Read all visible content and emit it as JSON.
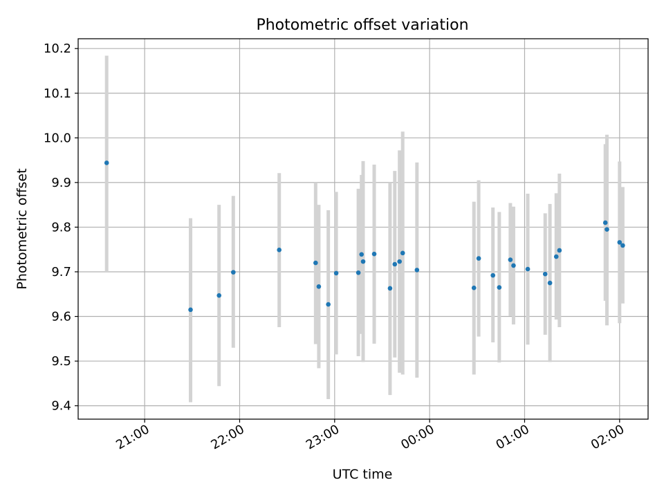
{
  "chart_data": {
    "type": "scatter",
    "title": "Photometric offset variation",
    "xlabel": "UTC time",
    "ylabel": "Photometric offset",
    "x_is_time": true,
    "xlim": [
      "20:18",
      "26:18"
    ],
    "ylim": [
      9.37,
      10.222
    ],
    "x_ticks": [
      "21:00",
      "22:00",
      "23:00",
      "24:00",
      "25:00",
      "26:00"
    ],
    "x_tick_labels": [
      "21:00",
      "22:00",
      "23:00",
      "00:00",
      "01:00",
      "02:00"
    ],
    "y_ticks": [
      9.4,
      9.5,
      9.6,
      9.7,
      9.8,
      9.9,
      10.0,
      10.1,
      10.2
    ],
    "y_tick_labels": [
      "9.4",
      "9.5",
      "9.6",
      "9.7",
      "9.8",
      "9.9",
      "10.0",
      "10.1",
      "10.2"
    ],
    "grid": true,
    "marker_color": "#1f77b4",
    "errorbar_color": "#d3d3d3",
    "points": [
      {
        "x": "20:36",
        "y": 9.944,
        "ylo": 9.7,
        "yhi": 10.184
      },
      {
        "x": "21:29",
        "y": 9.615,
        "ylo": 9.408,
        "yhi": 9.82
      },
      {
        "x": "21:47",
        "y": 9.647,
        "ylo": 9.444,
        "yhi": 9.85
      },
      {
        "x": "21:56",
        "y": 9.699,
        "ylo": 9.53,
        "yhi": 9.87
      },
      {
        "x": "22:25",
        "y": 9.749,
        "ylo": 9.576,
        "yhi": 9.921
      },
      {
        "x": "22:48",
        "y": 9.72,
        "ylo": 9.538,
        "yhi": 9.9
      },
      {
        "x": "22:50",
        "y": 9.667,
        "ylo": 9.484,
        "yhi": 9.85
      },
      {
        "x": "22:56",
        "y": 9.627,
        "ylo": 9.415,
        "yhi": 9.838
      },
      {
        "x": "23:01",
        "y": 9.697,
        "ylo": 9.515,
        "yhi": 9.879
      },
      {
        "x": "23:15",
        "y": 9.698,
        "ylo": 9.511,
        "yhi": 9.886
      },
      {
        "x": "23:17",
        "y": 9.739,
        "ylo": 9.561,
        "yhi": 9.917
      },
      {
        "x": "23:18",
        "y": 9.723,
        "ylo": 9.498,
        "yhi": 9.948
      },
      {
        "x": "23:25",
        "y": 9.74,
        "ylo": 9.539,
        "yhi": 9.94
      },
      {
        "x": "23:35",
        "y": 9.663,
        "ylo": 9.424,
        "yhi": 9.9
      },
      {
        "x": "23:38",
        "y": 9.717,
        "ylo": 9.508,
        "yhi": 9.926
      },
      {
        "x": "23:41",
        "y": 9.723,
        "ylo": 9.474,
        "yhi": 9.972
      },
      {
        "x": "23:43",
        "y": 9.742,
        "ylo": 9.47,
        "yhi": 10.014
      },
      {
        "x": "23:52",
        "y": 9.704,
        "ylo": 9.463,
        "yhi": 9.945
      },
      {
        "x": "24:28",
        "y": 9.664,
        "ylo": 9.47,
        "yhi": 9.857
      },
      {
        "x": "24:31",
        "y": 9.73,
        "ylo": 9.555,
        "yhi": 9.905
      },
      {
        "x": "24:40",
        "y": 9.692,
        "ylo": 9.542,
        "yhi": 9.844
      },
      {
        "x": "24:44",
        "y": 9.665,
        "ylo": 9.497,
        "yhi": 9.834
      },
      {
        "x": "24:51",
        "y": 9.727,
        "ylo": 9.601,
        "yhi": 9.854
      },
      {
        "x": "24:53",
        "y": 9.714,
        "ylo": 9.582,
        "yhi": 9.846
      },
      {
        "x": "25:02",
        "y": 9.706,
        "ylo": 9.537,
        "yhi": 9.875
      },
      {
        "x": "25:13",
        "y": 9.695,
        "ylo": 9.559,
        "yhi": 9.831
      },
      {
        "x": "25:16",
        "y": 9.675,
        "ylo": 9.498,
        "yhi": 9.852
      },
      {
        "x": "25:20",
        "y": 9.734,
        "ylo": 9.593,
        "yhi": 9.876
      },
      {
        "x": "25:22",
        "y": 9.748,
        "ylo": 9.576,
        "yhi": 9.92
      },
      {
        "x": "25:51",
        "y": 9.81,
        "ylo": 9.635,
        "yhi": 9.986
      },
      {
        "x": "25:52",
        "y": 9.795,
        "ylo": 9.58,
        "yhi": 10.007
      },
      {
        "x": "26:00",
        "y": 9.766,
        "ylo": 9.585,
        "yhi": 9.947
      },
      {
        "x": "26:02",
        "y": 9.759,
        "ylo": 9.629,
        "yhi": 9.89
      }
    ]
  }
}
